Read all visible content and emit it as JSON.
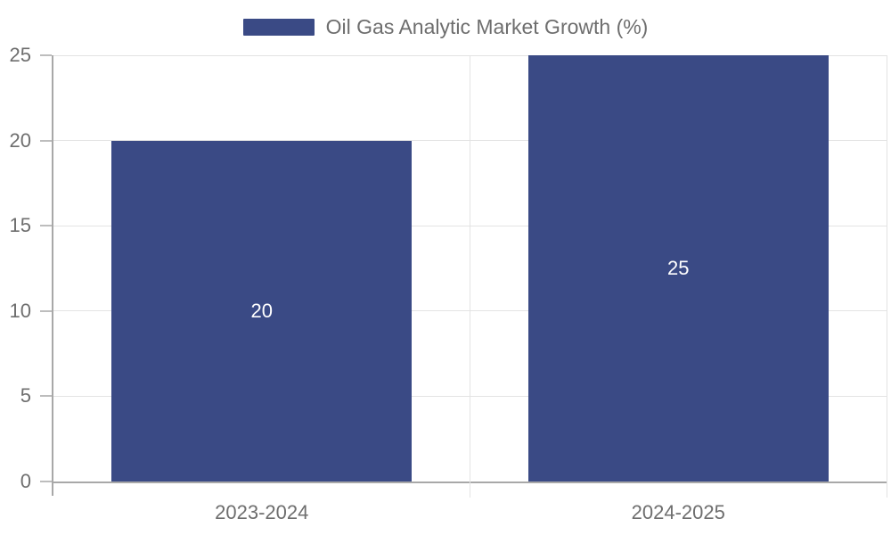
{
  "legend": {
    "label": "Oil Gas Analytic Market Growth (%)"
  },
  "chart_data": {
    "type": "bar",
    "title": "Oil Gas Analytic Market Growth (%)",
    "series_name": "Oil Gas Analytic Market Growth (%)",
    "categories": [
      "2023-2024",
      "2024-2025"
    ],
    "values": [
      20,
      25
    ],
    "value_labels": [
      "20",
      "25"
    ],
    "xlabel": "",
    "ylabel": "",
    "ylim": [
      0,
      25
    ],
    "yticks": [
      0,
      5,
      10,
      15,
      20,
      25
    ],
    "grid": true,
    "legend_position": "top-center"
  },
  "colors": {
    "bar": "#3A4A85",
    "grid": "#e3e3e3",
    "axis": "#a8a8a8",
    "tick": "#bdbdbd",
    "text": "#6E6E6E",
    "value_label": "#ffffff",
    "background": "#ffffff"
  }
}
